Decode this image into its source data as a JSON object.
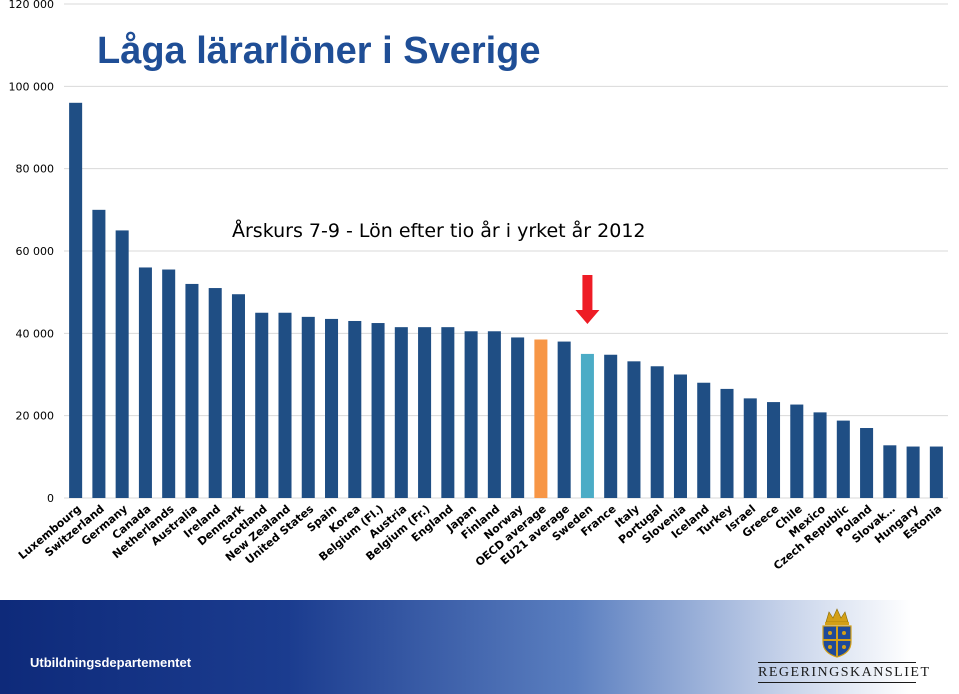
{
  "title": "Låga lärarlöner i Sverige",
  "subtitle": "Årskurs 7-9 - Lön efter tio år i yrket år 2012",
  "footer_text": "Utbildningsdepartementet",
  "government_name": "REGERINGSKANSLIET",
  "colors": {
    "bar": "#1f4e84",
    "highlight_oecd": "#f79646",
    "highlight_sweden": "#4bacc6",
    "arrow": "#ee1c25",
    "title": "#1f4e96"
  },
  "chart_data": {
    "type": "bar",
    "title": "Låga lärarlöner i Sverige",
    "subtitle": "Årskurs 7-9 - Lön efter tio år i yrket år 2012",
    "ylim": [
      0,
      120000
    ],
    "yticks": [
      0,
      20000,
      40000,
      60000,
      80000,
      100000,
      120000
    ],
    "ytick_labels": [
      "0",
      "20 000",
      "40 000",
      "60 000",
      "80 000",
      "100 000",
      "120 000"
    ],
    "grid": true,
    "categories": [
      "Luxembourg",
      "Switzerland",
      "Germany",
      "Canada",
      "Netherlands",
      "Australia",
      "Ireland",
      "Denmark",
      "Scotland",
      "New Zealand",
      "United States",
      "Spain",
      "Korea",
      "Belgium (Fl.)",
      "Austria",
      "Belgium (Fr.)",
      "England",
      "Japan",
      "Finland",
      "Norway",
      "OECD average",
      "EU21 average",
      "Sweden",
      "France",
      "Italy",
      "Portugal",
      "Slovenia",
      "Iceland",
      "Turkey",
      "Israel",
      "Greece",
      "Chile",
      "Mexico",
      "Czech Republic",
      "Poland",
      "Slovak…",
      "Hungary",
      "Estonia"
    ],
    "values": [
      96000,
      70000,
      65000,
      56000,
      55500,
      52000,
      51000,
      49500,
      45000,
      45000,
      44000,
      43500,
      43000,
      42500,
      41500,
      41500,
      41500,
      40500,
      40500,
      39000,
      38500,
      38000,
      35000,
      34800,
      33200,
      32000,
      30000,
      28000,
      26500,
      24200,
      23300,
      22700,
      20800,
      18800,
      17000,
      12800,
      12500,
      12500
    ],
    "highlight": {
      "OECD average": "orange",
      "Sweden": "lightblue"
    },
    "annotation": {
      "type": "arrow",
      "points_to": "Sweden"
    }
  }
}
